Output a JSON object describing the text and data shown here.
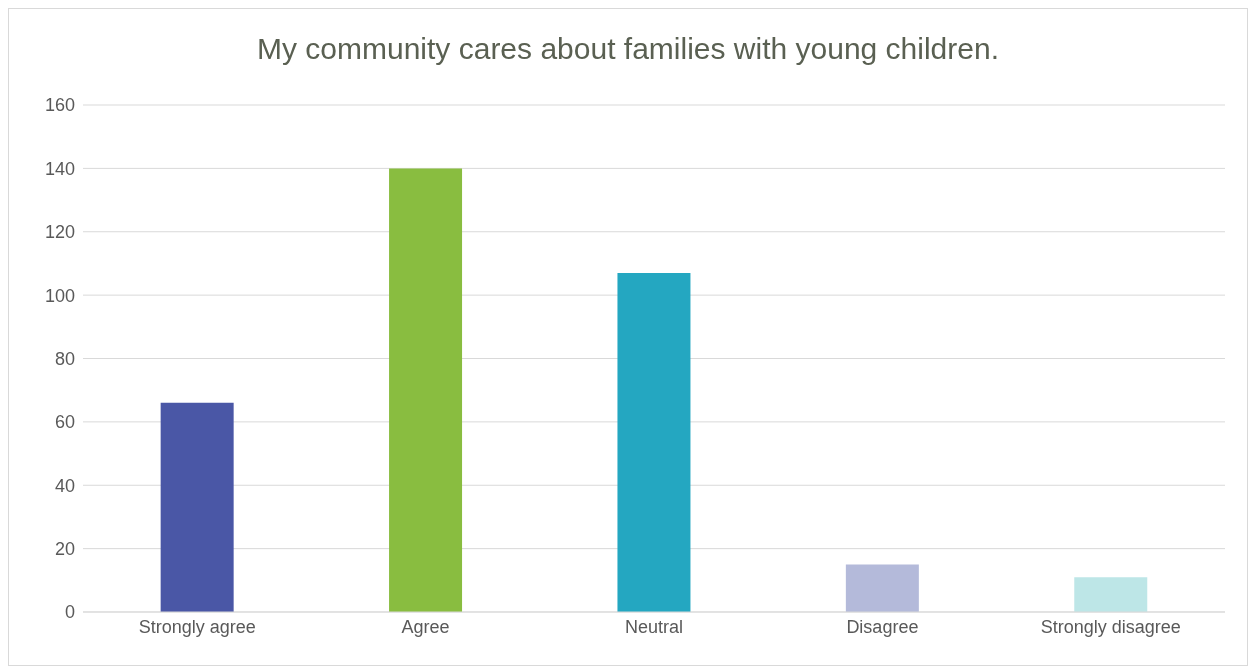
{
  "chart_data": {
    "type": "bar",
    "title": "My community cares about families with young children.",
    "categories": [
      "Strongly agree",
      "Agree",
      "Neutral",
      "Disagree",
      "Strongly disagree"
    ],
    "values": [
      66,
      140,
      107,
      15,
      11
    ],
    "colors": [
      "#4a57a6",
      "#89bd40",
      "#24a7c1",
      "#b4bada",
      "#bde6e7"
    ],
    "ylim": [
      0,
      160
    ],
    "yticks": [
      0,
      20,
      40,
      60,
      80,
      100,
      120,
      140,
      160
    ],
    "grid": "y",
    "legend": false
  }
}
